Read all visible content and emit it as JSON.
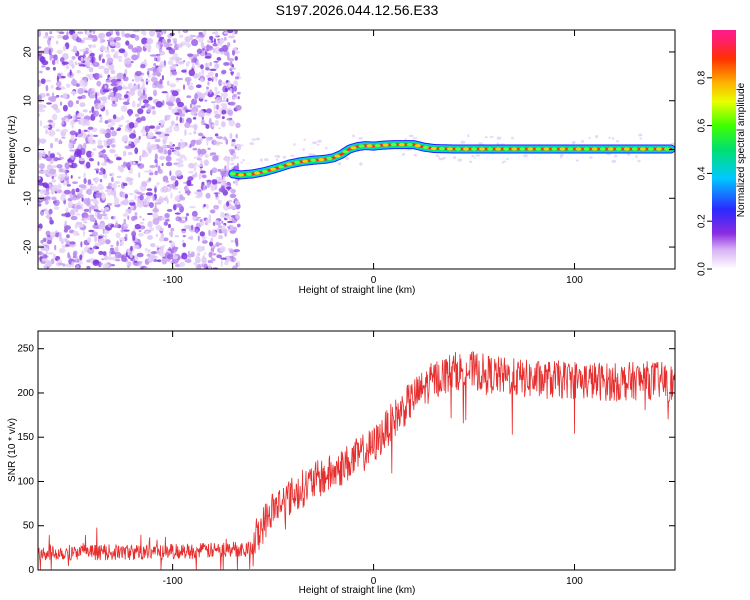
{
  "title": "S197.2026.044.12.56.E33",
  "chart_data": [
    {
      "type": "heatmap",
      "name": "spectrogram",
      "xlabel": "Height of straight line (km)",
      "ylabel": "Frequency (Hz)",
      "xlim": [
        -167,
        150
      ],
      "ylim": [
        -24.5,
        24.5
      ],
      "xticks": [
        -100,
        0,
        100
      ],
      "yticks": [
        -20,
        -10,
        0,
        10,
        20
      ],
      "noise_region_x": [
        -167,
        -70
      ],
      "signal_track": {
        "x": [
          -70,
          -66,
          -60,
          -54,
          -48,
          -42,
          -36,
          -30,
          -24,
          -20,
          -16,
          -12,
          -8,
          -4,
          0,
          5,
          10,
          15,
          20,
          25,
          30,
          40,
          60,
          80,
          100,
          120,
          140,
          148
        ],
        "y": [
          -5,
          -5.2,
          -5,
          -4.5,
          -3.8,
          -3,
          -2.5,
          -2.2,
          -2,
          -1.7,
          -1,
          0.1,
          0.6,
          0.8,
          0.7,
          0.9,
          1,
          1,
          1,
          0.5,
          0.2,
          0.1,
          0.1,
          0.1,
          0.1,
          0.1,
          0.1,
          0.1
        ]
      },
      "colorbar": {
        "label": "Normalized spectral amplitude",
        "range": [
          0,
          1
        ],
        "ticks": [
          0.0,
          0.2,
          0.4,
          0.6,
          0.8
        ],
        "tick_labels": [
          "0.0",
          "0.2",
          "0.4",
          "0.6",
          "0.8"
        ]
      }
    },
    {
      "type": "line",
      "name": "snr",
      "xlabel": "Height of straight line (km)",
      "ylabel": "SNR (10 * v/v)",
      "xlim": [
        -167,
        150
      ],
      "ylim": [
        0,
        270
      ],
      "xticks": [
        -100,
        0,
        100
      ],
      "yticks": [
        0,
        50,
        100,
        150,
        200,
        250
      ],
      "color": "#e62e2e",
      "trend": {
        "x": [
          -167,
          -120,
          -80,
          -60,
          -58,
          -50,
          -40,
          -30,
          -20,
          -10,
          0,
          10,
          20,
          30,
          40,
          50,
          60,
          80,
          100,
          120,
          140,
          150
        ],
        "y": [
          20,
          20,
          22,
          25,
          40,
          70,
          85,
          100,
          110,
          125,
          140,
          170,
          195,
          215,
          225,
          225,
          220,
          215,
          215,
          212,
          215,
          210
        ]
      },
      "noise_amplitude": 22
    }
  ]
}
